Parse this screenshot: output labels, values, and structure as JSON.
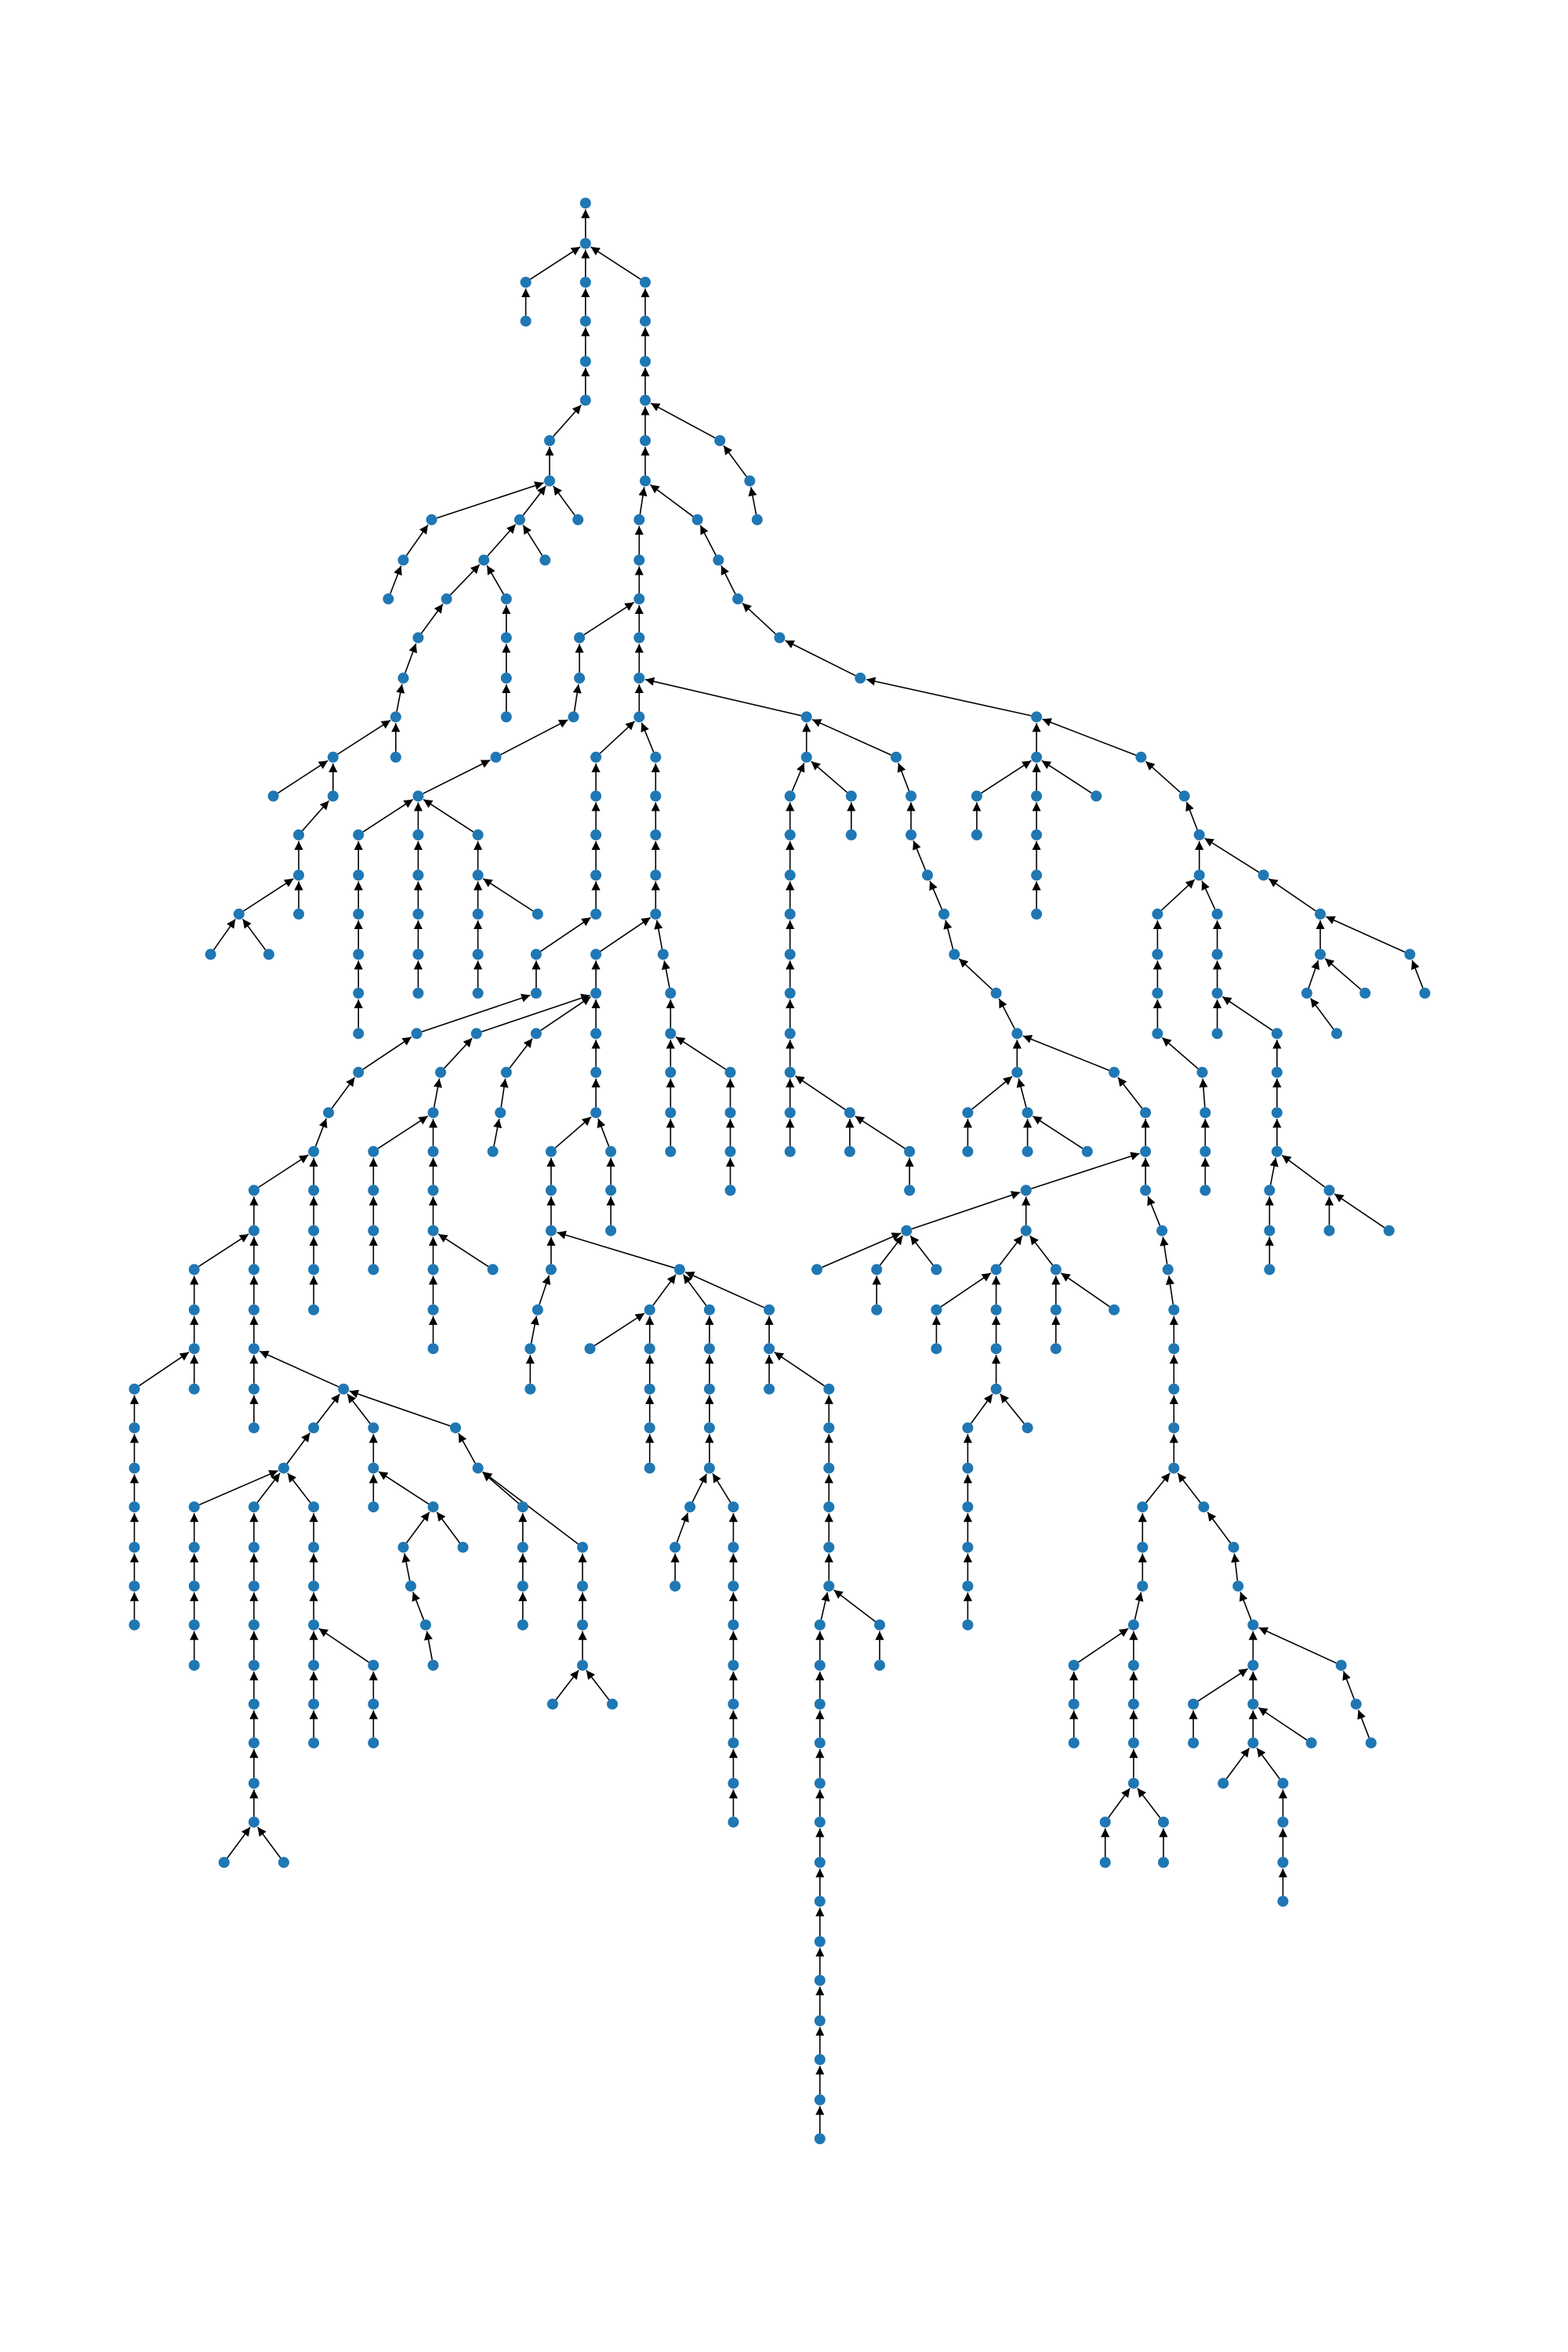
{
  "diagram": {
    "type": "directed-tree",
    "colors": {
      "node": "#1f77b4",
      "edge": "#000000"
    },
    "arrow_direction": "child-to-parent",
    "node_count": 356
  }
}
